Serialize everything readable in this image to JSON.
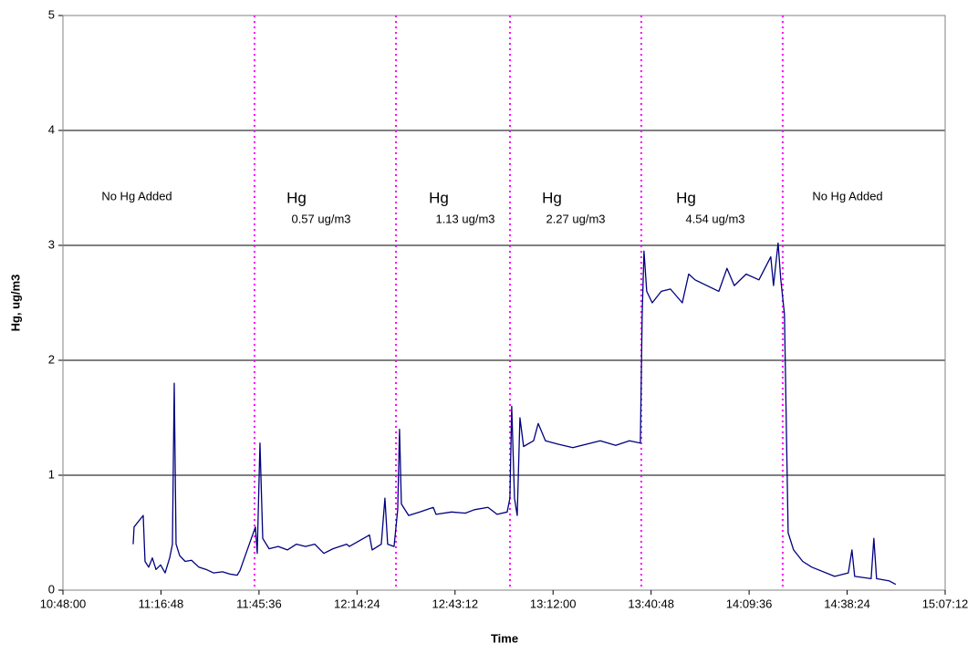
{
  "chart_data": {
    "type": "line",
    "x_label": "Time",
    "y_label": "Hg, ug/m3",
    "xlim": [
      "10:48:00",
      "15:07:12"
    ],
    "xticks": [
      "10:48:00",
      "11:16:48",
      "11:45:36",
      "12:14:24",
      "12:43:12",
      "13:12:00",
      "13:40:48",
      "14:09:36",
      "14:38:24",
      "15:07:12"
    ],
    "ylim": [
      0,
      5
    ],
    "yticks": [
      0,
      1,
      2,
      3,
      4,
      5
    ],
    "grid": true,
    "x": [
      "11:08:38",
      "11:08:54",
      "11:11:35",
      "11:12:07",
      "11:13:12",
      "11:14:16",
      "11:15:20",
      "11:16:41",
      "11:18:01",
      "11:19:21",
      "11:20:10",
      "11:20:42",
      "11:21:14",
      "11:22:18",
      "11:23:55",
      "11:25:47",
      "11:27:56",
      "11:30:05",
      "11:32:13",
      "11:34:54",
      "11:37:03",
      "11:39:11",
      "11:40:00",
      "11:44:33",
      "11:45:05",
      "11:45:53",
      "11:46:42",
      "11:48:34",
      "11:51:15",
      "11:53:56",
      "11:56:36",
      "11:59:17",
      "12:01:58",
      "12:04:39",
      "12:07:20",
      "12:11:21",
      "12:12:09",
      "12:18:03",
      "12:18:51",
      "12:21:32",
      "12:22:36",
      "12:23:24",
      "12:25:17",
      "12:26:21",
      "12:26:53",
      "12:27:26",
      "12:29:34",
      "12:32:47",
      "12:36:48",
      "12:37:37",
      "12:42:10",
      "12:46:11",
      "12:48:52",
      "12:52:53",
      "12:55:34",
      "12:58:31",
      "12:59:19",
      "12:59:51",
      "13:00:40",
      "13:01:28",
      "13:02:16",
      "13:03:20",
      "13:06:17",
      "13:07:38",
      "13:09:46",
      "13:13:31",
      "13:17:49",
      "13:25:51",
      "13:30:24",
      "13:34:26",
      "13:37:39",
      "13:38:11",
      "13:38:43",
      "13:39:31",
      "13:41:08",
      "13:43:48",
      "13:46:29",
      "13:49:58",
      "13:51:51",
      "13:53:43",
      "14:00:42",
      "14:03:06",
      "14:05:15",
      "14:08:44",
      "14:12:29",
      "14:15:58",
      "14:16:46",
      "14:18:07",
      "14:18:55",
      "14:19:59",
      "14:21:04",
      "14:22:40",
      "14:25:21",
      "14:28:02",
      "14:34:44",
      "14:38:45",
      "14:39:49",
      "14:40:37",
      "14:45:27",
      "14:46:15",
      "14:47:03",
      "14:50:48",
      "14:52:41"
    ],
    "series": [
      {
        "name": "Hg",
        "color": "#000080",
        "values": [
          0.4,
          0.55,
          0.65,
          0.25,
          0.2,
          0.28,
          0.18,
          0.22,
          0.15,
          0.28,
          0.4,
          1.8,
          0.4,
          0.3,
          0.25,
          0.26,
          0.2,
          0.18,
          0.15,
          0.16,
          0.14,
          0.13,
          0.17,
          0.55,
          0.32,
          1.28,
          0.45,
          0.36,
          0.38,
          0.35,
          0.4,
          0.38,
          0.4,
          0.32,
          0.36,
          0.4,
          0.38,
          0.48,
          0.35,
          0.4,
          0.8,
          0.4,
          0.38,
          0.7,
          1.4,
          0.75,
          0.65,
          0.68,
          0.72,
          0.66,
          0.68,
          0.67,
          0.7,
          0.72,
          0.66,
          0.68,
          0.8,
          1.6,
          0.8,
          0.65,
          1.5,
          1.25,
          1.3,
          1.45,
          1.3,
          1.27,
          1.24,
          1.3,
          1.26,
          1.3,
          1.28,
          2.4,
          2.95,
          2.6,
          2.5,
          2.6,
          2.62,
          2.5,
          2.75,
          2.7,
          2.6,
          2.8,
          2.65,
          2.75,
          2.7,
          2.9,
          2.65,
          3.02,
          2.7,
          2.4,
          0.5,
          0.35,
          0.25,
          0.2,
          0.12,
          0.15,
          0.35,
          0.12,
          0.1,
          0.45,
          0.1,
          0.08,
          0.05
        ]
      }
    ],
    "vlines": [
      "11:44:17",
      "12:25:50",
      "12:59:20",
      "13:37:55",
      "14:19:28"
    ],
    "vline_color": "#ff00ff",
    "annotations": [
      "No Hg Added",
      "Hg",
      "0.57 ug/m3",
      "Hg",
      "1.13 ug/m3",
      "Hg",
      "2.27 ug/m3",
      "Hg",
      "4.54 ug/m3",
      "No Hg Added"
    ]
  }
}
